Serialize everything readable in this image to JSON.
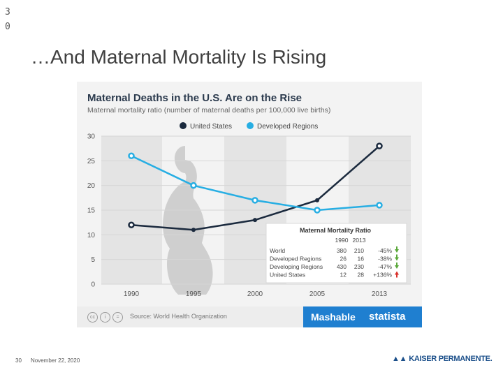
{
  "slide": {
    "corner_number": "30",
    "title": "…And Maternal Mortality Is Rising",
    "footer_page": "30",
    "footer_date": "November 22, 2020",
    "logo_text": "KAISER PERMANENTE."
  },
  "chart_data": {
    "type": "line",
    "title": "Maternal Deaths in the U.S. Are on the Rise",
    "subtitle": "Maternal mortality ratio (number of maternal deaths per 100,000 live births)",
    "xlabel": "",
    "ylabel": "",
    "categories": [
      "1990",
      "1995",
      "2000",
      "2005",
      "2013"
    ],
    "yticks": [
      "0",
      "5",
      "10",
      "15",
      "20",
      "25",
      "30"
    ],
    "ylim": [
      0,
      30
    ],
    "series": [
      {
        "name": "United States",
        "color": "#1b2a3e",
        "values": [
          12,
          11,
          13,
          17,
          28
        ]
      },
      {
        "name": "Developed Regions",
        "color": "#27aee3",
        "values": [
          26,
          20,
          17,
          15,
          16
        ]
      }
    ],
    "inset_table": {
      "title": "Maternal Mortality Ratio",
      "columns": [
        "1990",
        "2013"
      ],
      "rows": [
        {
          "label": "World",
          "v1990": "380",
          "v2013": "210",
          "change": "-45%",
          "dir": "down"
        },
        {
          "label": "Developed Regions",
          "v1990": "26",
          "v2013": "16",
          "change": "-38%",
          "dir": "down"
        },
        {
          "label": "Developing Regions",
          "v1990": "430",
          "v2013": "230",
          "change": "-47%",
          "dir": "down"
        },
        {
          "label": "United States",
          "v1990": "12",
          "v2013": "28",
          "change": "+136%",
          "dir": "up"
        }
      ]
    },
    "source": "Source: World Health Organization",
    "brands": [
      "Mashable",
      "statista"
    ]
  },
  "colors": {
    "down": "#5aa83a",
    "up": "#d9302b",
    "band": "#e4e4e4",
    "brand_blue": "#1f7fd0"
  }
}
